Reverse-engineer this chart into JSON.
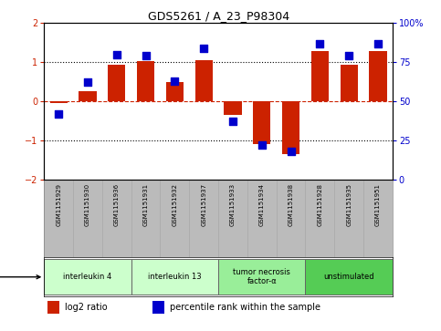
{
  "title": "GDS5261 / A_23_P98304",
  "samples": [
    "GSM1151929",
    "GSM1151930",
    "GSM1151936",
    "GSM1151931",
    "GSM1151932",
    "GSM1151937",
    "GSM1151933",
    "GSM1151934",
    "GSM1151938",
    "GSM1151928",
    "GSM1151935",
    "GSM1151951"
  ],
  "log2_ratio": [
    -0.05,
    0.25,
    0.93,
    1.03,
    0.5,
    1.05,
    -0.35,
    -1.1,
    -1.35,
    1.28,
    0.93,
    1.28
  ],
  "percentile": [
    42,
    62,
    80,
    79,
    63,
    84,
    37,
    22,
    18,
    87,
    79,
    87
  ],
  "groups": [
    {
      "label": "interleukin 4",
      "start": 0,
      "end": 2,
      "color": "#ccffcc",
      "dark": false
    },
    {
      "label": "interleukin 13",
      "start": 3,
      "end": 5,
      "color": "#ccffcc",
      "dark": false
    },
    {
      "label": "tumor necrosis\nfactor-α",
      "start": 6,
      "end": 8,
      "color": "#99ee99",
      "dark": false
    },
    {
      "label": "unstimulated",
      "start": 9,
      "end": 11,
      "color": "#55cc55",
      "dark": false
    }
  ],
  "bar_color": "#cc2200",
  "dot_color": "#0000cc",
  "ylim": [
    -2,
    2
  ],
  "y2lim": [
    0,
    100
  ],
  "yticks": [
    -2,
    -1,
    0,
    1,
    2
  ],
  "y2ticks": [
    0,
    25,
    50,
    75,
    100
  ],
  "background_color": "#ffffff",
  "plot_bg": "#ffffff",
  "ylabel_left_color": "#cc2200",
  "ylabel_right_color": "#0000cc",
  "sample_bg": "#bbbbbb"
}
